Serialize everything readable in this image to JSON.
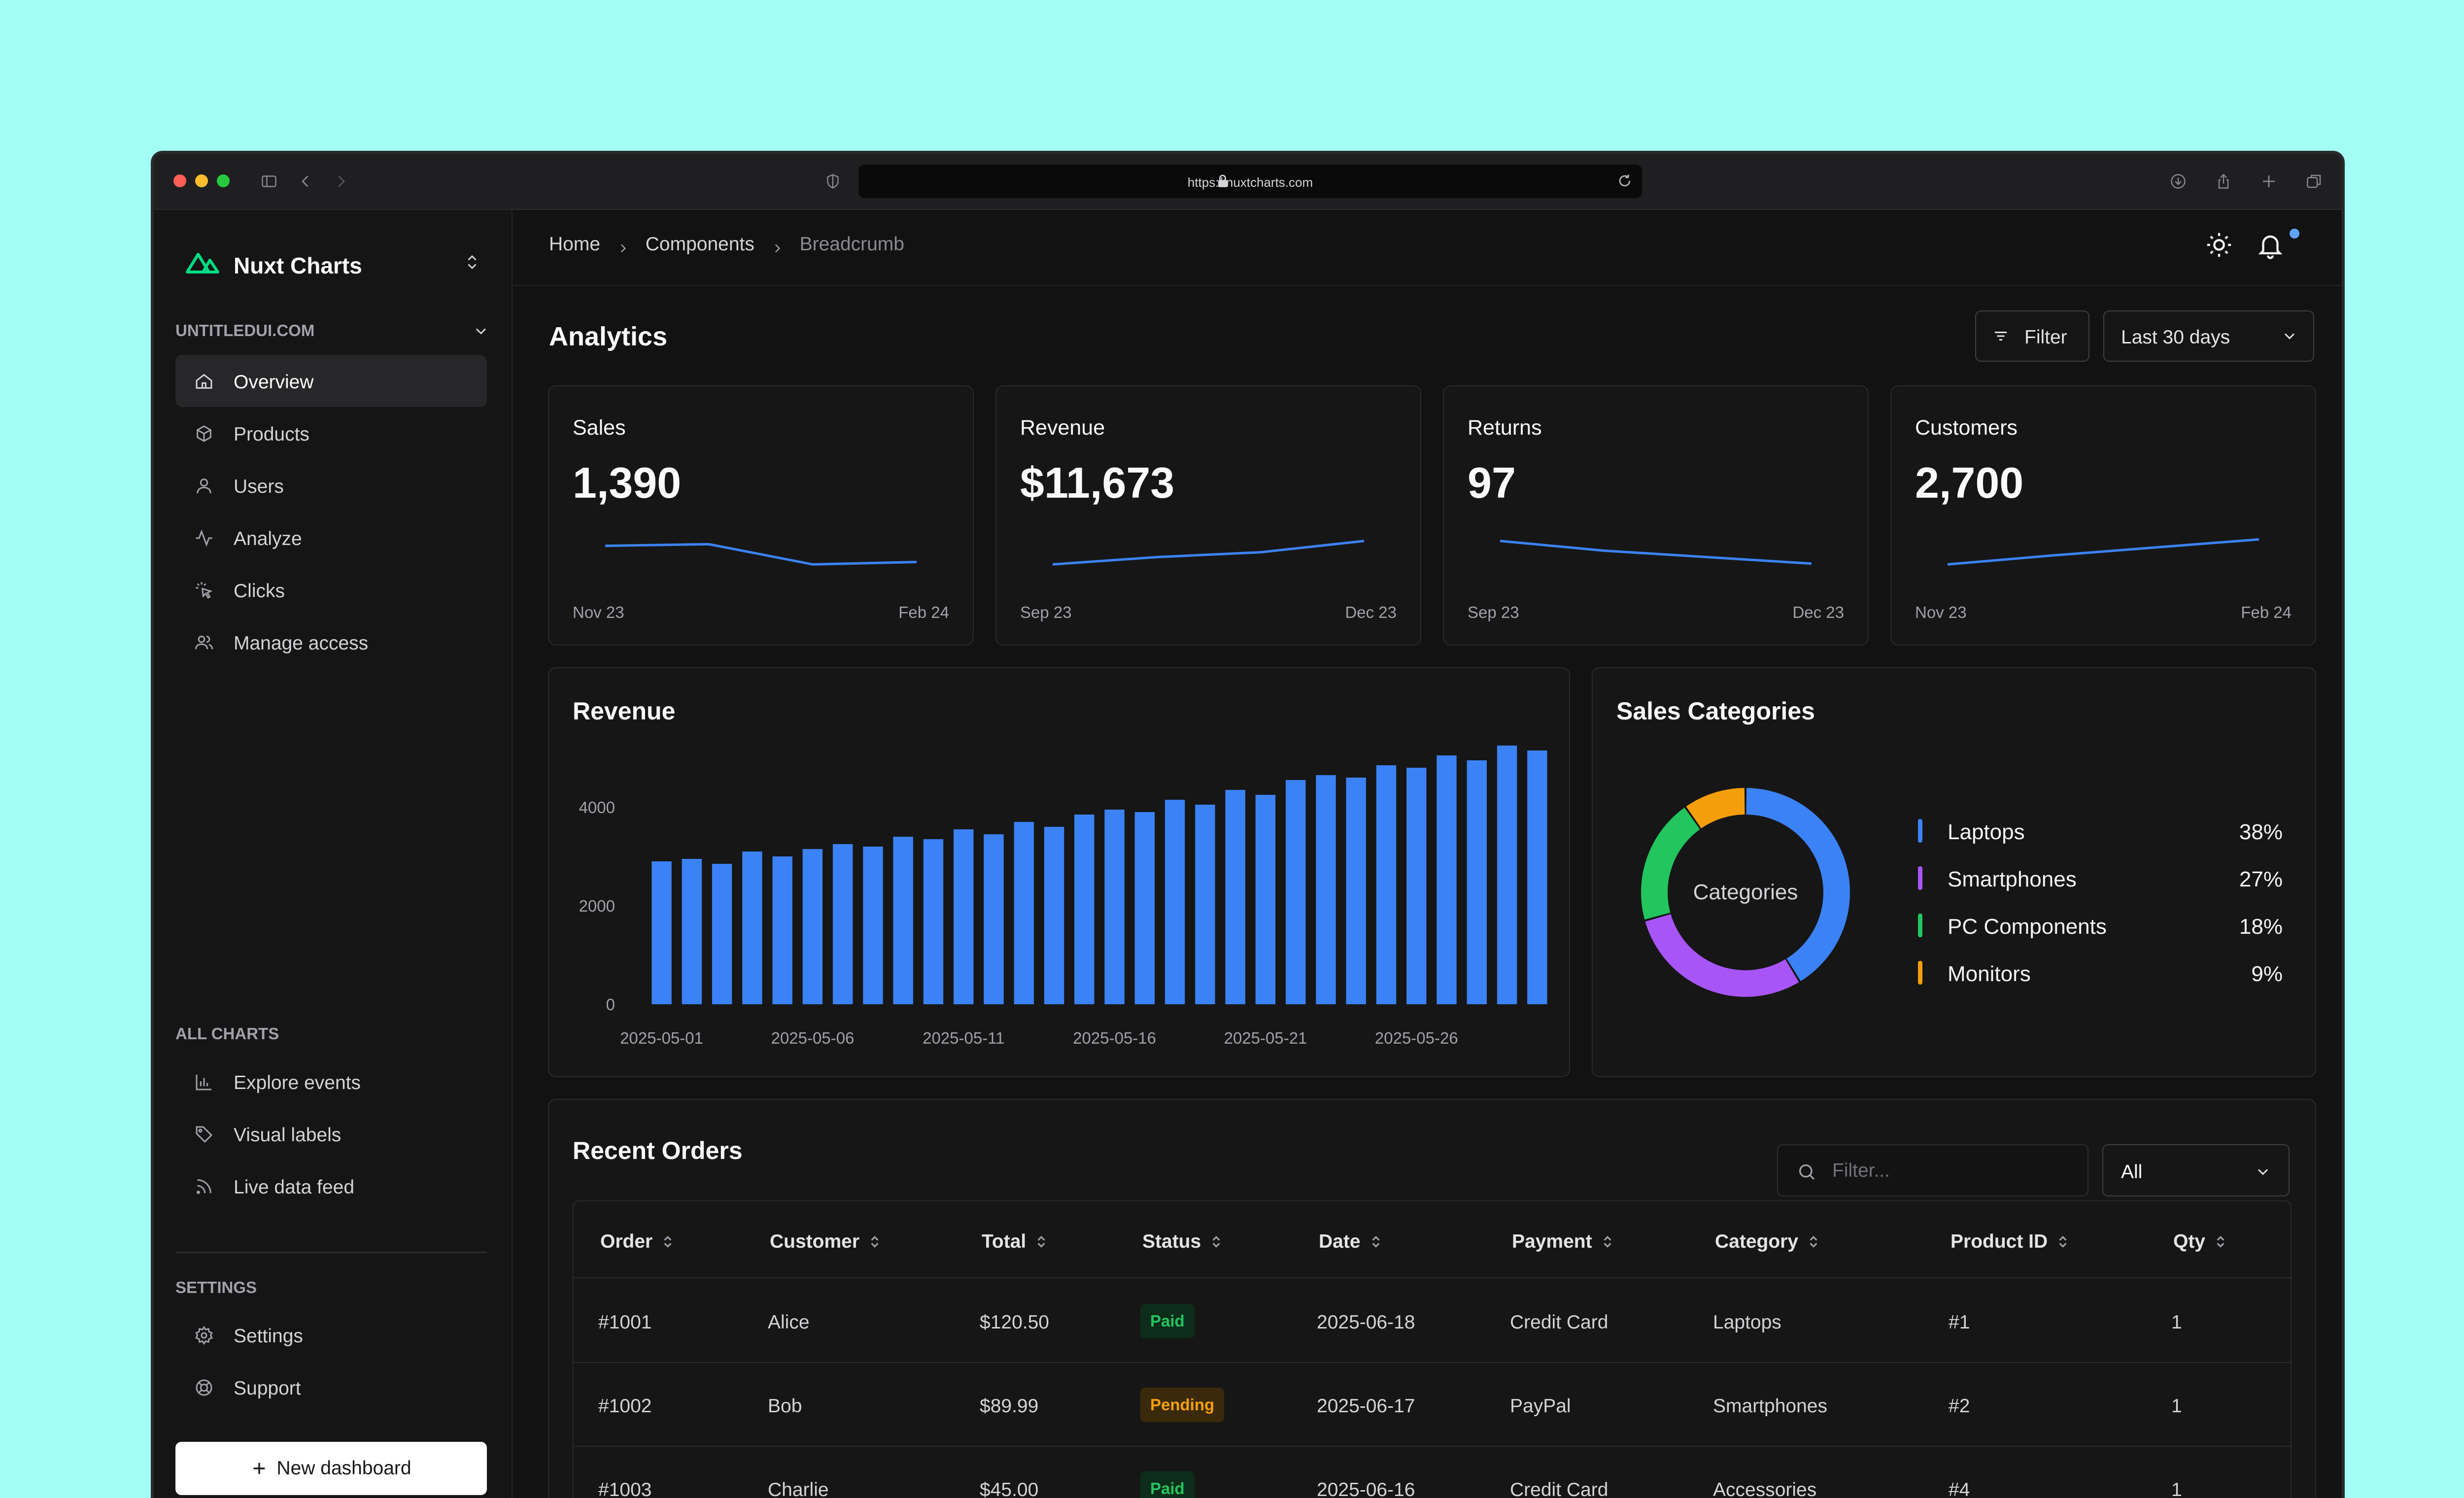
{
  "browser": {
    "url": "https://nuxtcharts.com"
  },
  "app": {
    "name": "Nuxt Charts"
  },
  "sidebar": {
    "workspace": "UNTITLEDUI.COM",
    "main_items": [
      {
        "label": "Overview",
        "icon": "home-icon"
      },
      {
        "label": "Products",
        "icon": "box-icon"
      },
      {
        "label": "Users",
        "icon": "user-icon"
      },
      {
        "label": "Analyze",
        "icon": "activity-icon"
      },
      {
        "label": "Clicks",
        "icon": "click-icon"
      },
      {
        "label": "Manage access",
        "icon": "users-icon"
      }
    ],
    "all_charts_heading": "ALL CHARTS",
    "chart_items": [
      {
        "label": "Explore events",
        "icon": "bar-chart-icon"
      },
      {
        "label": "Visual labels",
        "icon": "tag-icon"
      },
      {
        "label": "Live data feed",
        "icon": "rss-icon"
      }
    ],
    "settings_heading": "SETTINGS",
    "settings_items": [
      {
        "label": "Settings",
        "icon": "gear-icon"
      },
      {
        "label": "Support",
        "icon": "lifebuoy-icon"
      }
    ],
    "new_dashboard_label": "New dashboard"
  },
  "breadcrumb": [
    "Home",
    "Components",
    "Breadcrumb"
  ],
  "page": {
    "title": "Analytics",
    "filter_label": "Filter",
    "range_label": "Last 30 days"
  },
  "stats": [
    {
      "label": "Sales",
      "value": "1,390",
      "start": "Nov 23",
      "end": "Feb 24",
      "trend": [
        38,
        40,
        15,
        18
      ]
    },
    {
      "label": "Revenue",
      "value": "$11,673",
      "start": "Sep 23",
      "end": "Dec 23",
      "trend": [
        15,
        24,
        30,
        44
      ]
    },
    {
      "label": "Returns",
      "value": "97",
      "start": "Sep 23",
      "end": "Dec 23",
      "trend": [
        44,
        32,
        24,
        16
      ]
    },
    {
      "label": "Customers",
      "value": "2,700",
      "start": "Nov 23",
      "end": "Feb 24",
      "trend": [
        15,
        26,
        36,
        46
      ]
    }
  ],
  "revenue_panel": {
    "title": "Revenue"
  },
  "categories_panel": {
    "title": "Sales Categories",
    "center_label": "Categories",
    "items": [
      {
        "name": "Laptops",
        "pct": "38%",
        "value": 38,
        "color": "#3b82f6"
      },
      {
        "name": "Smartphones",
        "pct": "27%",
        "value": 27,
        "color": "#a855f7"
      },
      {
        "name": "PC Components",
        "pct": "18%",
        "value": 18,
        "color": "#22c55e"
      },
      {
        "name": "Monitors",
        "pct": "9%",
        "value": 9,
        "color": "#f59e0b"
      }
    ]
  },
  "chart_data": {
    "type": "bar",
    "title": "Revenue",
    "xlabel": "",
    "ylabel": "",
    "ylim": [
      0,
      5000
    ],
    "yticks": [
      0,
      2000,
      4000
    ],
    "x_tick_labels": [
      "2025-05-01",
      "2025-05-06",
      "2025-05-11",
      "2025-05-16",
      "2025-05-21",
      "2025-05-26"
    ],
    "categories": [
      "2025-05-01",
      "2025-05-02",
      "2025-05-03",
      "2025-05-04",
      "2025-05-05",
      "2025-05-06",
      "2025-05-07",
      "2025-05-08",
      "2025-05-09",
      "2025-05-10",
      "2025-05-11",
      "2025-05-12",
      "2025-05-13",
      "2025-05-14",
      "2025-05-15",
      "2025-05-16",
      "2025-05-17",
      "2025-05-18",
      "2025-05-19",
      "2025-05-20",
      "2025-05-21",
      "2025-05-22",
      "2025-05-23",
      "2025-05-24",
      "2025-05-25",
      "2025-05-26",
      "2025-05-27",
      "2025-05-28",
      "2025-05-29",
      "2025-05-30"
    ],
    "values": [
      2900,
      2950,
      2850,
      3100,
      3000,
      3150,
      3250,
      3200,
      3400,
      3350,
      3550,
      3450,
      3700,
      3600,
      3850,
      3950,
      3900,
      4150,
      4050,
      4350,
      4250,
      4550,
      4650,
      4600,
      4850,
      4800,
      5050,
      4950,
      5250,
      5150
    ],
    "color": "#3b82f6"
  },
  "orders": {
    "title": "Recent Orders",
    "search_placeholder": "Filter...",
    "status_filter": "All",
    "columns": [
      "Order",
      "Customer",
      "Total",
      "Status",
      "Date",
      "Payment",
      "Category",
      "Product ID",
      "Qty"
    ],
    "rows": [
      {
        "order": "#1001",
        "customer": "Alice",
        "total": "$120.50",
        "status": "Paid",
        "date": "2025-06-18",
        "payment": "Credit Card",
        "category": "Laptops",
        "product_id": "#1",
        "qty": "1"
      },
      {
        "order": "#1002",
        "customer": "Bob",
        "total": "$89.99",
        "status": "Pending",
        "date": "2025-06-17",
        "payment": "PayPal",
        "category": "Smartphones",
        "product_id": "#2",
        "qty": "1"
      },
      {
        "order": "#1003",
        "customer": "Charlie",
        "total": "$45.00",
        "status": "Paid",
        "date": "2025-06-16",
        "payment": "Credit Card",
        "category": "Accessories",
        "product_id": "#4",
        "qty": "1"
      }
    ]
  }
}
